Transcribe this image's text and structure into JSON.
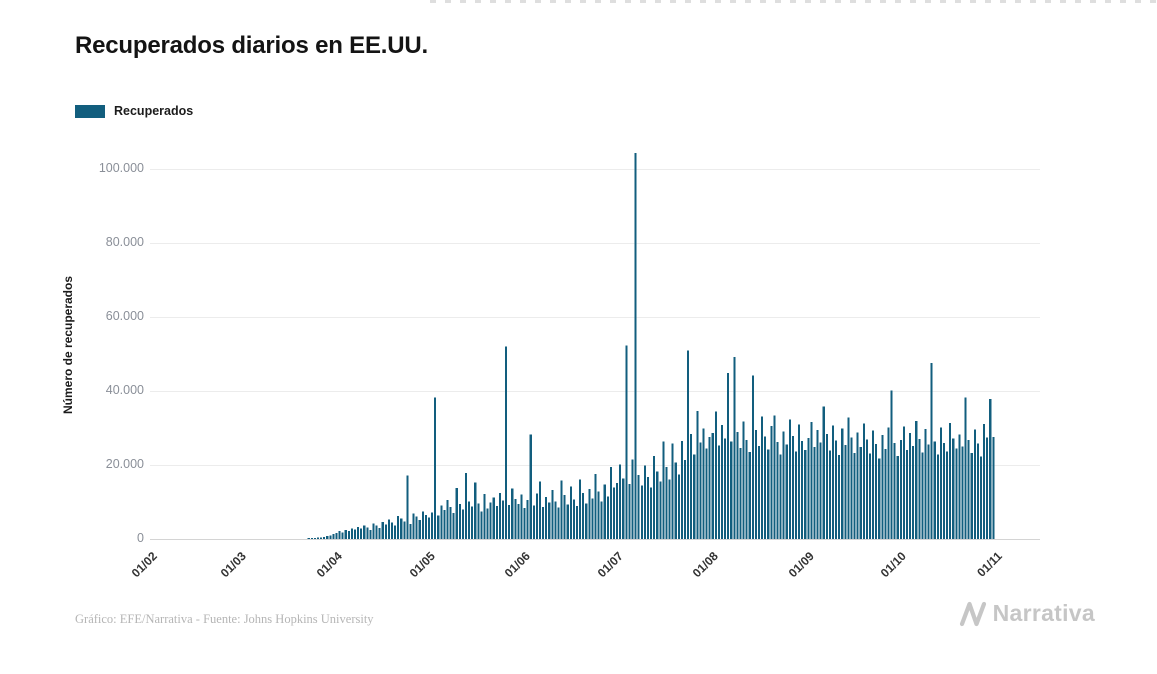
{
  "page": {
    "title": "Recuperados diarios en EE.UU.",
    "footer_credit": "Gráfico: EFE/Narrativa - Fuente: Johns Hopkins University",
    "brand": "Narrativa"
  },
  "legend": {
    "label": "Recuperados",
    "swatch_color": "#125E7E"
  },
  "chart_data": {
    "type": "bar",
    "title": "Recuperados diarios en EE.UU.",
    "xlabel": "",
    "ylabel": "Número de recuperados",
    "ylim": [
      0,
      110000
    ],
    "yticks": [
      0,
      20000,
      40000,
      60000,
      80000,
      100000
    ],
    "ytick_labels": [
      "0",
      "20.000",
      "40.000",
      "60.000",
      "80.000",
      "100.000"
    ],
    "xtick_labels": [
      "01/02",
      "01/03",
      "01/04",
      "01/05",
      "01/06",
      "01/07",
      "01/08",
      "01/09",
      "01/10",
      "01/11"
    ],
    "grid": true,
    "legend_entries": [
      "Recuperados"
    ],
    "legend_position": "top-left",
    "bar_color": "#125E7E",
    "date_format": "DD/MM",
    "months": [
      {
        "label": "01/02",
        "days": [
          0,
          0,
          0,
          0,
          0,
          0,
          0,
          0,
          0,
          0,
          0,
          0,
          0,
          0,
          0,
          0,
          0,
          0,
          0,
          0,
          0,
          0,
          0,
          0,
          0,
          0,
          0,
          0,
          0
        ]
      },
      {
        "label": "01/03",
        "days": [
          0,
          0,
          0,
          0,
          0,
          0,
          0,
          0,
          0,
          0,
          0,
          0,
          0,
          0,
          0,
          0,
          0,
          0,
          0,
          0,
          0,
          0,
          100,
          150,
          250,
          350,
          450,
          600,
          800,
          1000,
          1300
        ]
      },
      {
        "label": "01/04",
        "days": [
          1600,
          2100,
          1800,
          2500,
          2200,
          2900,
          2600,
          3300,
          2800,
          3600,
          3100,
          2500,
          4200,
          3700,
          3000,
          4600,
          3900,
          5300,
          4400,
          3600,
          6200,
          5500,
          4700,
          17200,
          4000,
          6900,
          6100,
          5200,
          7400,
          6500
        ]
      },
      {
        "label": "01/05",
        "days": [
          5800,
          7200,
          38300,
          6400,
          9000,
          7800,
          10500,
          8600,
          7000,
          13800,
          9400,
          8000,
          17900,
          10200,
          8800,
          15300,
          9600,
          7500,
          12100,
          8300,
          9800,
          11200,
          8900,
          12500,
          10400,
          52000,
          9200,
          13600,
          10800,
          9500,
          12000
        ]
      },
      {
        "label": "01/06",
        "days": [
          8400,
          10600,
          28200,
          9100,
          12300,
          15500,
          8700,
          11400,
          9800,
          13200,
          10100,
          8500,
          15800,
          11900,
          9300,
          14200,
          10700,
          8900,
          16100,
          12400,
          9600,
          13500,
          11000,
          17600,
          12800,
          10200,
          14700,
          11500,
          19400,
          13900
        ]
      },
      {
        "label": "01/07",
        "days": [
          15200,
          20100,
          16400,
          52300,
          14800,
          21500,
          104300,
          17300,
          14500,
          19800,
          16700,
          13900,
          22400,
          18200,
          15600,
          26300,
          19500,
          16100,
          25800,
          20700,
          17400,
          26500,
          21300,
          50900,
          28400,
          22900,
          34600,
          26100,
          29800,
          24500,
          27600
        ]
      },
      {
        "label": "01/08",
        "days": [
          28700,
          34500,
          25300,
          30800,
          27100,
          44800,
          26400,
          49200,
          28900,
          24600,
          31700,
          26800,
          23500,
          44200,
          29400,
          25100,
          33100,
          27700,
          24200,
          30500,
          33400,
          26200,
          22800,
          29100,
          25600,
          32300,
          27900,
          23700,
          30900,
          26500,
          24000
        ]
      },
      {
        "label": "01/09",
        "days": [
          27300,
          31600,
          24800,
          29500,
          26100,
          35800,
          28400,
          23900,
          30700,
          26600,
          22700,
          29900,
          25400,
          32800,
          27500,
          23300,
          28800,
          24900,
          31200,
          26900,
          23100,
          29300,
          25700,
          21800,
          28100,
          24300,
          30200,
          40100,
          25900,
          22500
        ]
      },
      {
        "label": "01/10",
        "days": [
          26700,
          30400,
          24100,
          28600,
          25200,
          31900,
          27000,
          23400,
          29700,
          25500,
          47600,
          26300,
          22900,
          30100,
          26000,
          23600,
          31400,
          27200,
          24400,
          28300,
          25000,
          38200,
          26800,
          23200,
          29600,
          25800,
          22300,
          31100,
          27400,
          37800,
          27600
        ]
      }
    ]
  }
}
